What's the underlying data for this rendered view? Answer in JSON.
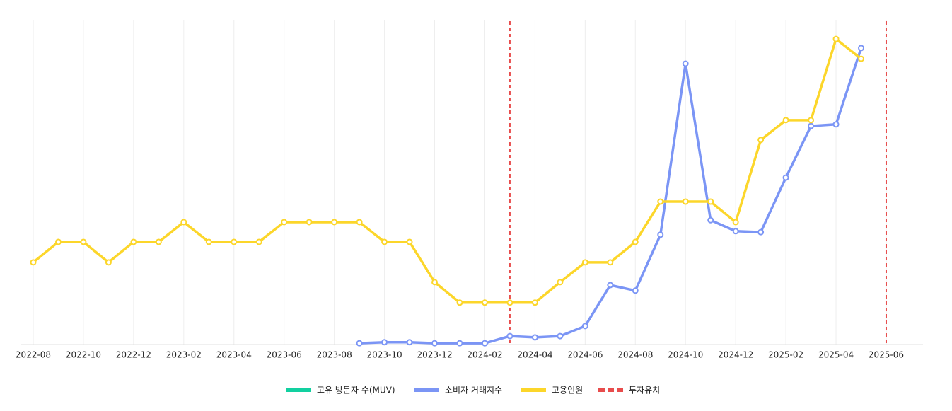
{
  "chart_data": {
    "type": "line",
    "categories": [
      "2022-08",
      null,
      "2022-10",
      null,
      "2022-12",
      null,
      "2023-02",
      null,
      "2023-04",
      null,
      "2023-06",
      null,
      "2023-08",
      null,
      "2023-10",
      null,
      "2023-12",
      null,
      "2024-02",
      null,
      "2024-04",
      null,
      "2024-06",
      null,
      "2024-08",
      null,
      "2024-10",
      null,
      "2024-12",
      null,
      "2025-02",
      null,
      "2025-04",
      null,
      "2025-06"
    ],
    "series": [
      {
        "name": "고유 방문자 수(MUV)",
        "color": "#12d0a0",
        "values": [
          null,
          null,
          null,
          null,
          null,
          null,
          null,
          null,
          null,
          null,
          null,
          null,
          null,
          null,
          null,
          null,
          null,
          null,
          null,
          null,
          null,
          null,
          null,
          null,
          null,
          null,
          null,
          null,
          null,
          null,
          null,
          null,
          null,
          null,
          null
        ]
      },
      {
        "name": "소비자 거래지수",
        "color": "#7b95f5",
        "values": [
          null,
          null,
          null,
          null,
          null,
          null,
          null,
          null,
          null,
          null,
          null,
          null,
          null,
          0.4,
          0.7,
          0.7,
          0.4,
          0.4,
          0.4,
          2.6,
          2.2,
          2.6,
          5.7,
          18.3,
          16.6,
          33.8,
          86.5,
          38.3,
          34.9,
          34.6,
          51.4,
          67.3,
          67.8,
          91.3,
          null
        ]
      },
      {
        "name": "고용인원",
        "color": "#fcd62a",
        "values": [
          25.3,
          31.6,
          31.6,
          25.3,
          31.6,
          31.6,
          37.7,
          31.6,
          31.6,
          31.6,
          37.7,
          37.7,
          37.7,
          37.7,
          31.6,
          31.6,
          19.2,
          12.9,
          12.9,
          12.9,
          12.9,
          19.2,
          25.3,
          25.3,
          31.6,
          44.0,
          44.0,
          44.0,
          37.7,
          63.0,
          69.1,
          69.1,
          94.1,
          88.0,
          null
        ]
      }
    ],
    "markers": {
      "name": "투자유치",
      "color": "#e84c4c",
      "at": [
        "2024-03",
        "2025-06"
      ]
    },
    "ylim": [
      0,
      100
    ],
    "grid": true,
    "legend": "bottom"
  }
}
